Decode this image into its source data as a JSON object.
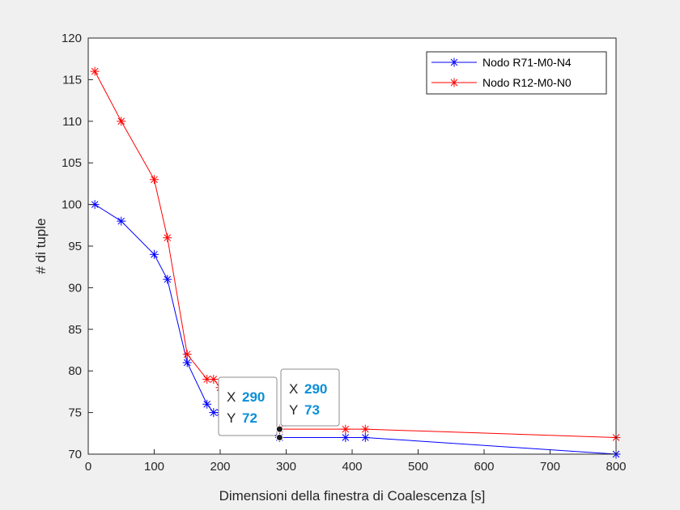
{
  "chart_data": {
    "type": "line",
    "xlabel": "Dimensioni della finestra di Coalescenza [s]",
    "ylabel": "# di tuple",
    "xlim": [
      0,
      800
    ],
    "ylim": [
      70,
      120
    ],
    "xticks": [
      "0",
      "100",
      "200",
      "300",
      "400",
      "500",
      "600",
      "700",
      "800"
    ],
    "yticks": [
      "70",
      "75",
      "80",
      "85",
      "90",
      "95",
      "100",
      "105",
      "110",
      "115",
      "120"
    ],
    "grid": false,
    "legend_position": "top-right",
    "series": [
      {
        "name": "Nodo R71-M0-N4",
        "color": "#0000ff",
        "marker": "asterisk",
        "x": [
          10,
          50,
          100,
          120,
          150,
          180,
          190,
          200,
          290,
          390,
          420,
          800
        ],
        "y": [
          100,
          98,
          94,
          91,
          81,
          76,
          75,
          75,
          72,
          72,
          72,
          70
        ]
      },
      {
        "name": "Nodo R12-M0-N0",
        "color": "#ff0000",
        "marker": "asterisk",
        "x": [
          10,
          50,
          100,
          120,
          150,
          180,
          190,
          200,
          290,
          390,
          420,
          800
        ],
        "y": [
          116,
          110,
          103,
          96,
          82,
          79,
          79,
          78,
          73,
          73,
          73,
          72
        ]
      }
    ],
    "datatips": [
      {
        "x_key": "X",
        "x_value": "290",
        "y_key": "Y",
        "y_value": "72",
        "target": [
          290,
          72
        ]
      },
      {
        "x_key": "X",
        "x_value": "290",
        "y_key": "Y",
        "y_value": "73",
        "target": [
          290,
          73
        ]
      }
    ]
  }
}
